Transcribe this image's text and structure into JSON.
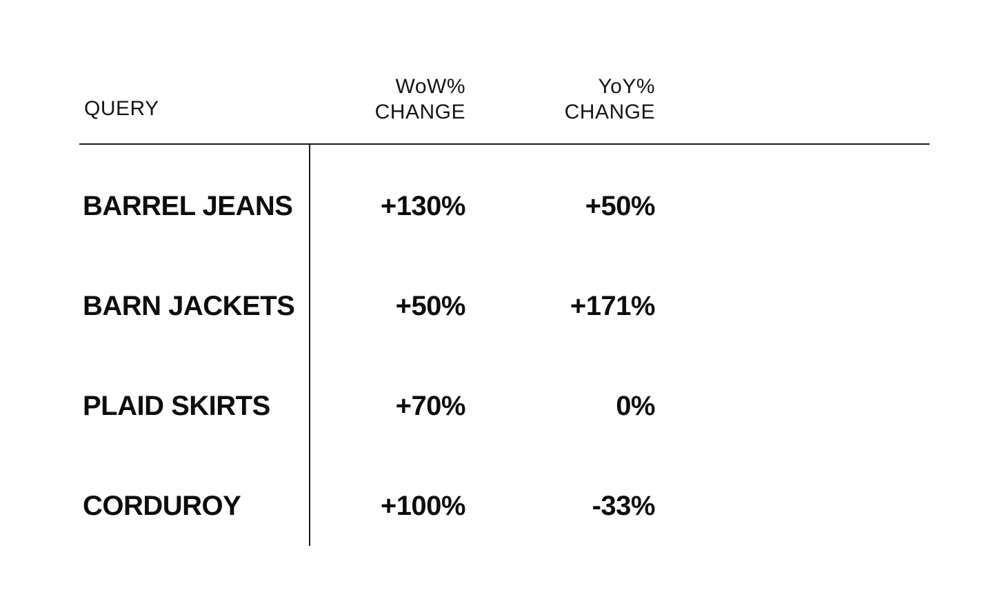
{
  "table": {
    "header": {
      "query": "QUERY",
      "wow_line1": "WoW%",
      "wow_line2": "CHANGE",
      "yoy_line1": "YoY%",
      "yoy_line2": "CHANGE"
    },
    "rows": [
      {
        "query": "BARREL JEANS",
        "wow": "+130%",
        "yoy": "+50%"
      },
      {
        "query": "BARN JACKETS",
        "wow": "+50%",
        "yoy": "+171%"
      },
      {
        "query": "PLAID SKIRTS",
        "wow": "+70%",
        "yoy": "0%"
      },
      {
        "query": "CORDUROY",
        "wow": "+100%",
        "yoy": "-33%"
      }
    ]
  },
  "chart_data": {
    "type": "table",
    "title": "",
    "columns": [
      "QUERY",
      "WoW% CHANGE",
      "YoY% CHANGE"
    ],
    "categories": [
      "BARREL JEANS",
      "BARN JACKETS",
      "PLAID SKIRTS",
      "CORDUROY"
    ],
    "series": [
      {
        "name": "WoW% CHANGE",
        "values": [
          130,
          50,
          70,
          100
        ]
      },
      {
        "name": "YoY% CHANGE",
        "values": [
          50,
          171,
          0,
          -33
        ]
      }
    ],
    "cell_text": [
      [
        "BARREL JEANS",
        "+130%",
        "+50%"
      ],
      [
        "BARN JACKETS",
        "+50%",
        "+171%"
      ],
      [
        "PLAID SKIRTS",
        "+70%",
        "0%"
      ],
      [
        "CORDUROY",
        "+100%",
        "-33%"
      ]
    ]
  },
  "colors": {
    "background": "#ffffff",
    "text": "#0d0d0d",
    "rule": "#1a1a1a"
  }
}
